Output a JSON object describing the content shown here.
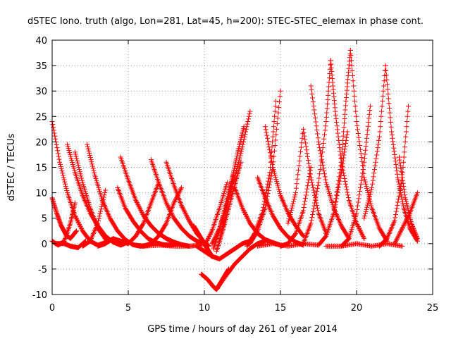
{
  "chart_data": {
    "type": "scatter",
    "title": "dSTEC Iono. truth (algo, Lon=281, Lat=45, h=200): STEC-STEC_elemax in phase cont.",
    "xlabel": "GPS time / hours of day 261 of year 2014",
    "ylabel": "dSTEC  / TECUs",
    "xlim": [
      0,
      25
    ],
    "ylim": [
      -10,
      40
    ],
    "xticks": [
      0,
      5,
      10,
      15,
      20,
      25
    ],
    "yticks": [
      -10,
      -5,
      0,
      5,
      10,
      15,
      20,
      25,
      30,
      35,
      40
    ],
    "grid": true,
    "legend": "none",
    "marker": "plus",
    "series_color": "#ff0000",
    "series": [
      {
        "x": [
          0.0,
          0.5,
          1.0,
          1.5,
          2.0,
          2.5,
          3.0,
          3.5
        ],
        "y": [
          24.0,
          16.0,
          10.0,
          5.5,
          2.5,
          0.5,
          -0.3,
          0.2
        ]
      },
      {
        "x": [
          0.0,
          0.3,
          0.6,
          0.9,
          1.2,
          1.6
        ],
        "y": [
          9.0,
          6.0,
          3.5,
          1.8,
          1.0,
          2.5
        ]
      },
      {
        "x": [
          0.0,
          0.4,
          0.8,
          1.2,
          1.5
        ],
        "y": [
          0.5,
          -0.3,
          0.5,
          4.0,
          8.0
        ]
      },
      {
        "x": [
          0.2,
          0.8,
          1.2,
          1.7,
          2.2
        ],
        "y": [
          0.0,
          0.0,
          -0.5,
          -0.8,
          0.5
        ]
      },
      {
        "x": [
          1.0,
          1.5,
          2.0,
          2.5,
          3.0,
          3.5,
          4.0,
          4.5,
          5.0
        ],
        "y": [
          19.5,
          14.0,
          9.5,
          6.0,
          3.5,
          1.5,
          0.3,
          -0.3,
          0.3
        ]
      },
      {
        "x": [
          1.5,
          2.0,
          2.5,
          3.0,
          3.6
        ],
        "y": [
          18.0,
          12.0,
          7.0,
          3.0,
          0.5
        ]
      },
      {
        "x": [
          2.3,
          2.8,
          3.3,
          3.8,
          4.3,
          4.8,
          5.3,
          5.8,
          6.3,
          6.8
        ],
        "y": [
          19.5,
          13.5,
          8.5,
          5.0,
          2.5,
          0.8,
          -0.2,
          -0.5,
          -0.3,
          0.2
        ]
      },
      {
        "x": [
          2.0,
          2.5,
          3.0,
          3.5
        ],
        "y": [
          -0.5,
          0.5,
          4.0,
          10.5
        ]
      },
      {
        "x": [
          3.0,
          3.5,
          4.0,
          4.5,
          5.0
        ],
        "y": [
          -0.5,
          0.0,
          1.0,
          0.5,
          0.0
        ]
      },
      {
        "x": [
          4.3,
          4.8,
          5.3,
          5.8,
          6.3,
          6.8,
          7.3,
          7.8,
          8.3
        ],
        "y": [
          11.0,
          7.0,
          4.5,
          2.5,
          1.0,
          0.2,
          -0.2,
          -0.3,
          0.0
        ]
      },
      {
        "x": [
          4.5,
          5.0,
          5.5,
          6.0,
          6.5,
          7.0,
          7.5,
          8.0,
          8.5,
          9.0
        ],
        "y": [
          17.0,
          12.5,
          8.5,
          5.5,
          3.5,
          2.0,
          1.0,
          0.3,
          -0.2,
          -0.5
        ]
      },
      {
        "x": [
          5.0,
          5.5,
          6.0,
          6.5,
          7.0
        ],
        "y": [
          0.0,
          1.5,
          4.0,
          8.0,
          12.0
        ]
      },
      {
        "x": [
          5.5,
          6.0,
          6.5,
          7.0,
          7.5,
          8.0,
          8.5
        ],
        "y": [
          -0.3,
          -0.5,
          0.0,
          1.5,
          4.0,
          8.0,
          11.0
        ]
      },
      {
        "x": [
          6.5,
          7.0,
          7.5,
          8.0,
          8.5,
          9.0,
          9.5,
          10.0
        ],
        "y": [
          16.5,
          12.0,
          8.0,
          5.0,
          3.0,
          1.5,
          0.5,
          0.0
        ]
      },
      {
        "x": [
          7.5,
          8.0,
          8.5,
          9.0,
          9.5,
          10.0,
          10.3
        ],
        "y": [
          16.0,
          11.5,
          7.5,
          4.5,
          2.0,
          0.3,
          -0.5
        ]
      },
      {
        "x": [
          6.0,
          7.0,
          8.0,
          9.0,
          9.8
        ],
        "y": [
          -0.5,
          -0.3,
          -0.5,
          -0.5,
          -0.3
        ]
      },
      {
        "x": [
          9.3,
          9.6,
          9.9,
          10.2,
          10.5
        ],
        "y": [
          3.5,
          2.0,
          0.5,
          -1.0,
          -2.5
        ]
      },
      {
        "x": [
          9.5,
          10.0,
          10.5,
          11.0,
          11.5,
          12.0,
          12.5,
          13.0
        ],
        "y": [
          -0.5,
          -1.5,
          -2.5,
          -3.0,
          -2.0,
          -1.0,
          0.0,
          0.5
        ]
      },
      {
        "x": [
          9.8,
          10.2,
          10.6,
          10.8,
          11.0,
          11.3,
          11.6
        ],
        "y": [
          -6.0,
          -7.0,
          -8.5,
          -9.0,
          -8.0,
          -6.5,
          -5.0
        ]
      },
      {
        "x": [
          10.8,
          11.5,
          12.0,
          12.5,
          13.0,
          13.5,
          14.0
        ],
        "y": [
          -9.0,
          -6.0,
          -4.0,
          -2.5,
          -1.0,
          0.0,
          0.5
        ]
      },
      {
        "x": [
          10.5,
          11.0,
          11.5,
          12.0,
          12.5,
          13.0
        ],
        "y": [
          0.0,
          3.0,
          8.0,
          13.0,
          19.0,
          26.0
        ]
      },
      {
        "x": [
          10.6,
          11.0,
          11.4,
          11.8,
          12.2,
          12.6
        ],
        "y": [
          -1.0,
          3.0,
          7.5,
          12.5,
          18.0,
          23.0
        ]
      },
      {
        "x": [
          10.8,
          11.2,
          11.6,
          12.0,
          12.4
        ],
        "y": [
          -1.5,
          2.5,
          7.0,
          11.5,
          16.0
        ]
      },
      {
        "x": [
          11.0,
          11.3,
          11.6,
          11.9
        ],
        "y": [
          0.5,
          4.5,
          9.0,
          13.5
        ]
      },
      {
        "x": [
          10.0,
          10.5,
          11.0,
          11.5
        ],
        "y": [
          -0.5,
          2.5,
          7.0,
          12.0
        ]
      },
      {
        "x": [
          12.0,
          12.5,
          13.0,
          13.5,
          14.0,
          14.5,
          15.0
        ],
        "y": [
          11.0,
          7.0,
          4.0,
          2.0,
          0.8,
          0.2,
          -0.3
        ]
      },
      {
        "x": [
          13.5,
          14.0,
          14.5,
          15.0,
          15.5,
          16.0,
          16.5
        ],
        "y": [
          13.0,
          9.0,
          5.5,
          3.0,
          1.3,
          0.3,
          -0.3
        ]
      },
      {
        "x": [
          13.0,
          13.5,
          14.0,
          14.5,
          15.0
        ],
        "y": [
          0.0,
          2.5,
          7.0,
          15.0,
          30.0
        ]
      },
      {
        "x": [
          12.8,
          13.3,
          13.8,
          14.3,
          14.7
        ],
        "y": [
          -0.5,
          2.0,
          6.0,
          14.0,
          28.0
        ]
      },
      {
        "x": [
          14.0,
          14.5,
          15.0,
          15.5,
          16.0,
          16.5
        ],
        "y": [
          23.0,
          15.0,
          9.5,
          6.0,
          3.5,
          1.5
        ]
      },
      {
        "x": [
          15.0,
          15.5,
          16.0,
          16.5,
          17.0
        ],
        "y": [
          -0.5,
          0.0,
          2.0,
          6.5,
          15.0
        ]
      },
      {
        "x": [
          15.5,
          16.0,
          16.5,
          17.0,
          17.5,
          18.0
        ],
        "y": [
          4.0,
          10.0,
          22.5,
          13.0,
          6.0,
          2.0
        ]
      },
      {
        "x": [
          16.5,
          17.0,
          17.5,
          18.0,
          18.3
        ],
        "y": [
          0.0,
          4.0,
          12.0,
          24.0,
          36.0
        ]
      },
      {
        "x": [
          17.0,
          17.5,
          18.0,
          18.5,
          19.0,
          19.5
        ],
        "y": [
          31.0,
          20.0,
          12.0,
          7.0,
          3.5,
          1.0
        ]
      },
      {
        "x": [
          18.3,
          18.6,
          19.0,
          19.5,
          20.0,
          20.5
        ],
        "y": [
          36.0,
          26.0,
          16.0,
          8.5,
          4.0,
          1.0
        ]
      },
      {
        "x": [
          17.5,
          18.0,
          18.5,
          19.0,
          19.4
        ],
        "y": [
          -0.3,
          1.5,
          6.0,
          14.0,
          22.0
        ]
      },
      {
        "x": [
          18.5,
          19.0,
          19.3,
          19.6
        ],
        "y": [
          6.0,
          16.0,
          28.0,
          38.0
        ]
      },
      {
        "x": [
          19.6,
          20.0,
          20.5,
          21.0,
          21.5,
          22.0
        ],
        "y": [
          38.0,
          24.0,
          13.0,
          7.0,
          3.0,
          0.5
        ]
      },
      {
        "x": [
          19.0,
          19.5,
          20.0,
          20.5,
          20.9
        ],
        "y": [
          -0.5,
          1.0,
          6.0,
          16.0,
          27.0
        ]
      },
      {
        "x": [
          20.5,
          21.0,
          21.5,
          21.9
        ],
        "y": [
          5.0,
          11.0,
          21.0,
          35.0
        ]
      },
      {
        "x": [
          21.9,
          22.3,
          22.7,
          23.1,
          23.5,
          24.0
        ],
        "y": [
          35.0,
          22.0,
          13.0,
          7.0,
          3.0,
          0.5
        ]
      },
      {
        "x": [
          21.5,
          22.0,
          22.5,
          23.0,
          23.4
        ],
        "y": [
          -0.5,
          1.0,
          4.5,
          13.0,
          27.0
        ]
      },
      {
        "x": [
          22.8,
          23.2,
          23.6,
          24.0
        ],
        "y": [
          17.0,
          9.0,
          4.0,
          1.0
        ]
      },
      {
        "x": [
          22.5,
          23.0,
          23.5,
          24.0
        ],
        "y": [
          0.0,
          3.0,
          6.0,
          10.0
        ]
      },
      {
        "x": [
          18.0,
          19.0,
          20.0,
          21.0,
          22.0,
          23.0
        ],
        "y": [
          -0.5,
          -0.5,
          0.0,
          -0.5,
          0.0,
          -0.5
        ]
      },
      {
        "x": [
          13.5,
          14.5,
          15.5,
          16.5,
          17.5
        ],
        "y": [
          -0.5,
          0.0,
          -0.5,
          0.0,
          -0.3
        ]
      }
    ]
  }
}
